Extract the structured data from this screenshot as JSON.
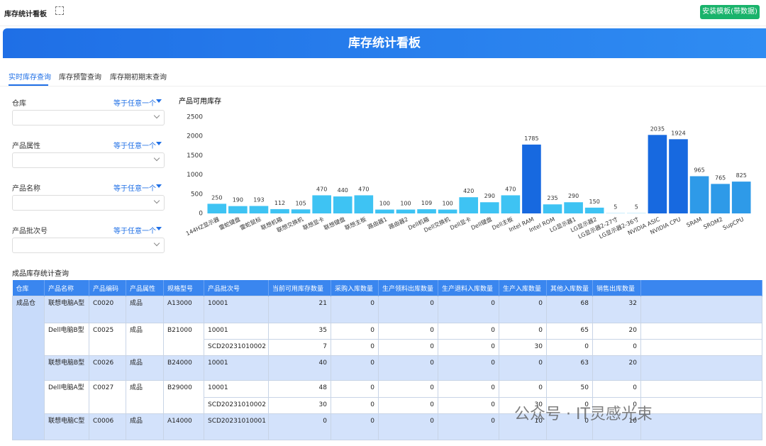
{
  "header": {
    "title": "库存统计看板",
    "button": "安装模板(带数据)"
  },
  "banner": {
    "title": "库存统计看板"
  },
  "tabs": [
    "实时库存查询",
    "库存预警查询",
    "库存期初期末查询"
  ],
  "filters": [
    {
      "label": "仓库",
      "operator": "等于任意一个"
    },
    {
      "label": "产品属性",
      "operator": "等于任意一个"
    },
    {
      "label": "产品名称",
      "operator": "等于任意一个"
    },
    {
      "label": "产品批次号",
      "operator": "等于任意一个"
    }
  ],
  "chart_data": {
    "type": "bar",
    "title": "产品可用库存",
    "categories": [
      "144HZ显示器",
      "雷蛇键盘",
      "雷蛇鼠标",
      "联想机箱",
      "联想交换机",
      "联想显卡",
      "联想键盘",
      "联想主板",
      "路由器1",
      "路由器2",
      "Dell机箱",
      "Dell交换机",
      "Dell显卡",
      "Dell键盘",
      "Dell主板",
      "Intel RAM",
      "Intel ROM",
      "LG显示器1",
      "LG显示器2",
      "LG显示器2-27寸",
      "LG显示器2-36寸",
      "NVIDIA ASIC",
      "NVIDIA CPU",
      "SRAM",
      "SROM2",
      "SupCPU"
    ],
    "values": [
      250,
      190,
      193,
      112,
      105,
      470,
      440,
      470,
      100,
      100,
      109,
      100,
      420,
      290,
      470,
      1785,
      235,
      290,
      150,
      5,
      5,
      2035,
      1924,
      965,
      765,
      825
    ],
    "colors": [
      "#3ec3f3",
      "#3ec3f3",
      "#3ec3f3",
      "#3ec3f3",
      "#3ec3f3",
      "#3ec3f3",
      "#3ec3f3",
      "#3ec3f3",
      "#3ec3f3",
      "#3ec3f3",
      "#3ec3f3",
      "#3ec3f3",
      "#3ec3f3",
      "#3ec3f3",
      "#3ec3f3",
      "#1769e0",
      "#3ec3f3",
      "#3ec3f3",
      "#3ec3f3",
      "#3ec3f3",
      "#3ec3f3",
      "#1769e0",
      "#1769e0",
      "#2e9ae8",
      "#2e9ae8",
      "#2e9ae8"
    ],
    "ylim": [
      0,
      2500
    ],
    "yticks": [
      0,
      500,
      1000,
      1500,
      2000,
      2500
    ]
  },
  "table": {
    "title": "成品库存统计查询",
    "columns": [
      "仓库",
      "产品名称",
      "产品编码",
      "产品属性",
      "规格型号",
      "产品批次号",
      "当前可用库存数量",
      "采购入库数量",
      "生产领料出库数量",
      "生产退料入库数量",
      "生产入库数量",
      "其他入库数量",
      "销售出库数量"
    ],
    "warehouse": "成品仓",
    "products": [
      {
        "name": "联想电脑A型",
        "code": "C0020",
        "attr": "成品",
        "spec": "A13000",
        "batches": [
          [
            "10001",
            21,
            0,
            0,
            0,
            0,
            68,
            32
          ]
        ]
      },
      {
        "name": "Dell电脑B型",
        "code": "C0025",
        "attr": "成品",
        "spec": "B21000",
        "batches": [
          [
            "10001",
            35,
            0,
            0,
            0,
            0,
            65,
            20
          ],
          [
            "SCD20231010002",
            7,
            0,
            0,
            0,
            30,
            0,
            0
          ]
        ]
      },
      {
        "name": "联想电脑B型",
        "code": "C0026",
        "attr": "成品",
        "spec": "B24000",
        "batches": [
          [
            "10001",
            40,
            0,
            0,
            0,
            0,
            63,
            20
          ]
        ]
      },
      {
        "name": "Dell电脑A型",
        "code": "C0027",
        "attr": "成品",
        "spec": "B29000",
        "batches": [
          [
            "10001",
            48,
            0,
            0,
            0,
            0,
            50,
            0
          ],
          [
            "SCD20231010002",
            30,
            0,
            0,
            0,
            30,
            0,
            0
          ]
        ]
      },
      {
        "name": "联想电脑C型",
        "code": "C0006",
        "attr": "成品",
        "spec": "A14000",
        "batches": [
          [
            "SCD20231010001",
            0,
            0,
            0,
            0,
            10,
            0,
            10
          ]
        ]
      }
    ]
  },
  "watermark": "公众号 · IT灵感光束"
}
